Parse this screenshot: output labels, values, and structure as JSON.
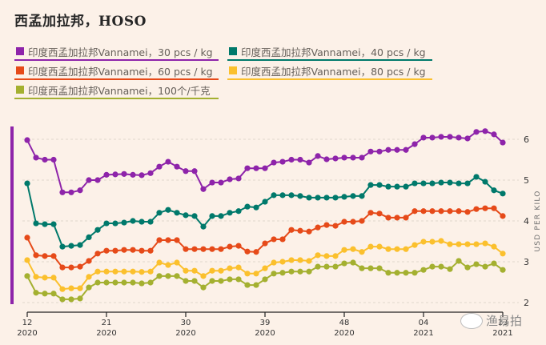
{
  "chart_data": {
    "type": "line",
    "title": "西孟加拉邦，HOSO",
    "xlabel": "",
    "ylabel": "USD PER KILO",
    "ylim": [
      2,
      6.5
    ],
    "yticks": [
      2,
      3,
      4,
      5,
      6
    ],
    "grid": true,
    "legend_position": "top-left",
    "x_tick_labels": [
      {
        "week": "12",
        "year": "2020",
        "index": 0
      },
      {
        "week": "21",
        "year": "2020",
        "index": 9
      },
      {
        "week": "30",
        "year": "2020",
        "index": 18
      },
      {
        "week": "39",
        "year": "2020",
        "index": 27
      },
      {
        "week": "48",
        "year": "2020",
        "index": 36
      },
      {
        "week": "04",
        "year": "2021",
        "index": 45
      },
      {
        "week": "13",
        "year": "2021",
        "index": 54
      }
    ],
    "series": [
      {
        "name": "印度西孟加拉邦Vannamei，30 pcs / kg",
        "color": "#8e24aa",
        "values": [
          5.98,
          5.55,
          5.5,
          5.5,
          4.7,
          4.7,
          4.75,
          5.0,
          5.0,
          5.13,
          5.14,
          5.15,
          5.13,
          5.12,
          5.17,
          5.33,
          5.45,
          5.33,
          5.22,
          5.22,
          4.78,
          4.94,
          4.94,
          5.02,
          5.04,
          5.29,
          5.29,
          5.29,
          5.43,
          5.45,
          5.5,
          5.5,
          5.43,
          5.59,
          5.51,
          5.53,
          5.55,
          5.55,
          5.55,
          5.7,
          5.7,
          5.74,
          5.74,
          5.74,
          5.88,
          6.04,
          6.04,
          6.06,
          6.06,
          6.04,
          6.02,
          6.18,
          6.2,
          6.12,
          5.92
        ]
      },
      {
        "name": "印度西孟加拉邦Vannamei，40 pcs / kg",
        "color": "#00796b",
        "values": [
          4.92,
          3.94,
          3.92,
          3.92,
          3.37,
          3.39,
          3.41,
          3.6,
          3.78,
          3.94,
          3.94,
          3.96,
          4.0,
          3.98,
          3.98,
          4.2,
          4.27,
          4.2,
          4.14,
          4.12,
          3.86,
          4.12,
          4.12,
          4.2,
          4.24,
          4.35,
          4.33,
          4.47,
          4.63,
          4.63,
          4.63,
          4.61,
          4.57,
          4.57,
          4.57,
          4.57,
          4.59,
          4.61,
          4.61,
          4.88,
          4.88,
          4.84,
          4.84,
          4.84,
          4.92,
          4.92,
          4.92,
          4.94,
          4.94,
          4.92,
          4.92,
          5.08,
          4.96,
          4.75,
          4.67
        ]
      },
      {
        "name": "印度西孟加拉邦Vannamei，60 pcs / kg",
        "color": "#e64a19",
        "values": [
          3.59,
          3.16,
          3.14,
          3.14,
          2.86,
          2.86,
          2.88,
          3.02,
          3.2,
          3.27,
          3.27,
          3.29,
          3.29,
          3.27,
          3.27,
          3.53,
          3.53,
          3.53,
          3.31,
          3.31,
          3.31,
          3.31,
          3.31,
          3.37,
          3.39,
          3.25,
          3.24,
          3.45,
          3.55,
          3.55,
          3.78,
          3.76,
          3.74,
          3.84,
          3.9,
          3.88,
          3.98,
          3.98,
          4.0,
          4.2,
          4.18,
          4.08,
          4.08,
          4.08,
          4.24,
          4.24,
          4.24,
          4.24,
          4.24,
          4.24,
          4.22,
          4.29,
          4.31,
          4.31,
          4.12
        ]
      },
      {
        "name": "印度西孟加拉邦Vannamei，80 pcs / kg",
        "color": "#fbc02d",
        "values": [
          3.04,
          2.63,
          2.61,
          2.61,
          2.33,
          2.35,
          2.35,
          2.63,
          2.76,
          2.76,
          2.76,
          2.76,
          2.76,
          2.75,
          2.76,
          2.98,
          2.92,
          2.98,
          2.78,
          2.78,
          2.65,
          2.78,
          2.78,
          2.84,
          2.86,
          2.71,
          2.71,
          2.84,
          2.98,
          3.0,
          3.04,
          3.04,
          3.02,
          3.16,
          3.14,
          3.14,
          3.29,
          3.31,
          3.24,
          3.37,
          3.37,
          3.31,
          3.31,
          3.31,
          3.41,
          3.49,
          3.49,
          3.51,
          3.43,
          3.43,
          3.43,
          3.43,
          3.45,
          3.37,
          3.2
        ]
      },
      {
        "name": "印度西孟加拉邦Vannamei，100个/千克",
        "color": "#a4b030",
        "values": [
          2.65,
          2.24,
          2.22,
          2.22,
          2.08,
          2.08,
          2.1,
          2.37,
          2.49,
          2.49,
          2.49,
          2.49,
          2.49,
          2.47,
          2.49,
          2.65,
          2.65,
          2.65,
          2.53,
          2.53,
          2.37,
          2.53,
          2.53,
          2.57,
          2.57,
          2.43,
          2.43,
          2.57,
          2.71,
          2.73,
          2.76,
          2.76,
          2.76,
          2.88,
          2.88,
          2.88,
          2.96,
          2.98,
          2.84,
          2.84,
          2.84,
          2.73,
          2.73,
          2.73,
          2.73,
          2.8,
          2.88,
          2.88,
          2.82,
          3.02,
          2.86,
          2.94,
          2.88,
          2.96,
          2.8
        ]
      }
    ]
  },
  "watermark": "渔易拍"
}
